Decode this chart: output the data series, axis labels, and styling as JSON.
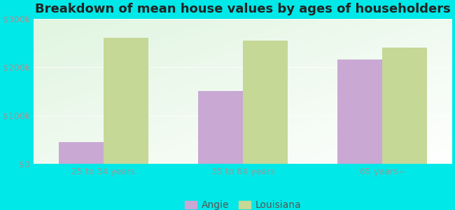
{
  "title": "Breakdown of mean house values by ages of householders",
  "categories": [
    "25 to 34 years",
    "35 to 64 years",
    "65 years+"
  ],
  "angie_values": [
    45000,
    150000,
    215000
  ],
  "louisiana_values": [
    260000,
    255000,
    240000
  ],
  "angie_color": "#c9a8d4",
  "louisiana_color": "#c5d896",
  "background_outer": "#00e8e8",
  "background_inner_topleft": "#d6f0d6",
  "background_inner_bottomright": "#f0faf0",
  "ylim": [
    0,
    300000
  ],
  "yticks": [
    0,
    100000,
    200000,
    300000
  ],
  "ytick_labels": [
    "$0",
    "$100k",
    "$200k",
    "$300k"
  ],
  "legend_labels": [
    "Angie",
    "Louisiana"
  ],
  "bar_width": 0.32,
  "title_fontsize": 13,
  "tick_fontsize": 9,
  "legend_fontsize": 10,
  "tick_color": "#999999",
  "title_color": "#222222"
}
